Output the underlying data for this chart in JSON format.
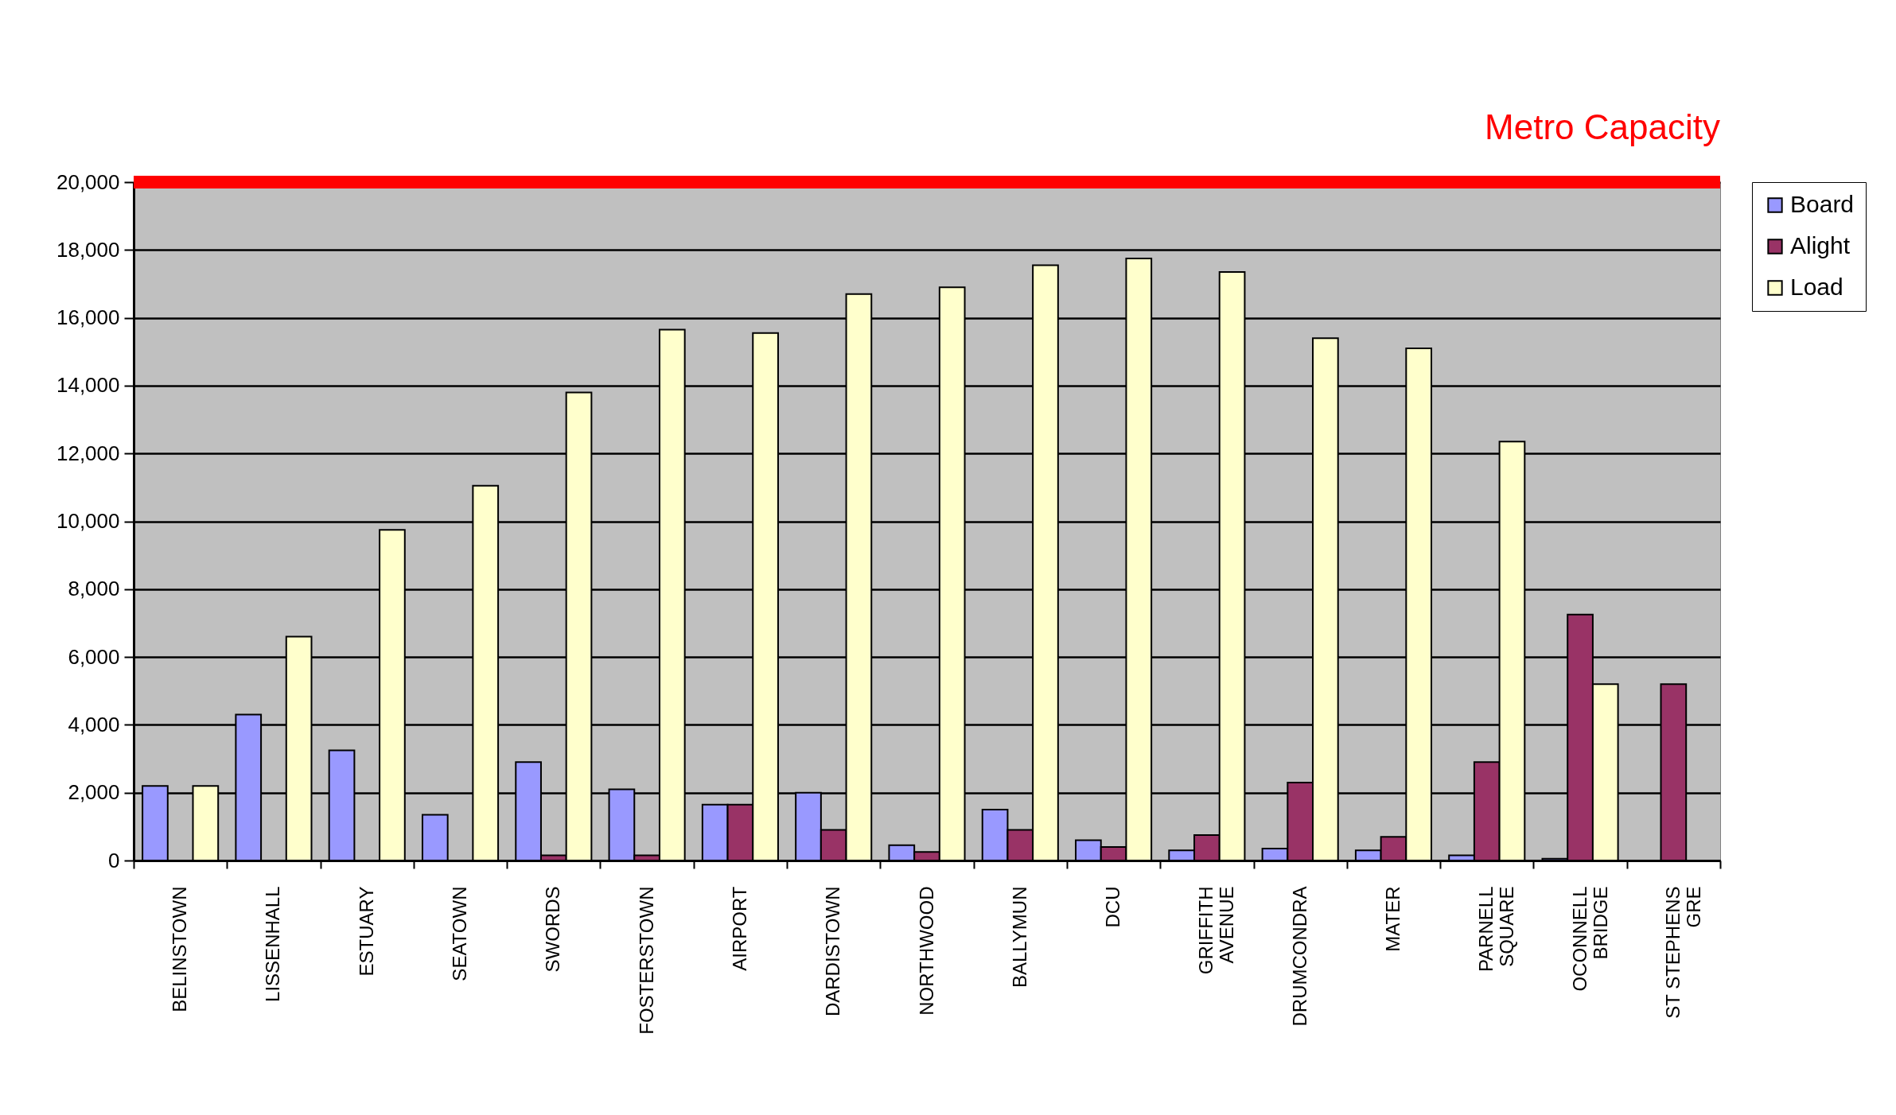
{
  "chart_data": {
    "type": "bar",
    "categories": [
      "BELINSTOWN",
      "LISSENHALL",
      "ESTUARY",
      "SEATOWN",
      "SWORDS",
      "FOSTERSTOWN",
      "AIRPORT",
      "DARDISTOWN",
      "NORTHWOOD",
      "BALLYMUN",
      "DCU",
      "GRIFFITH AVENUE",
      "DRUMCONDRA",
      "MATER",
      "PARNELL SQUARE",
      "OCONNELL BRIDGE",
      "ST STEPHENS GRE"
    ],
    "series": [
      {
        "name": "Board",
        "color": "#9999ff",
        "values": [
          2200,
          4300,
          3250,
          1350,
          2900,
          2100,
          1650,
          2000,
          450,
          1500,
          600,
          300,
          350,
          300,
          150,
          50,
          null
        ]
      },
      {
        "name": "Alight",
        "color": "#993366",
        "values": [
          null,
          null,
          null,
          null,
          150,
          150,
          1650,
          900,
          250,
          900,
          400,
          750,
          2300,
          700,
          2900,
          7250,
          5200
        ]
      },
      {
        "name": "Load",
        "color": "#ffffcc",
        "values": [
          2200,
          6600,
          9750,
          11050,
          13800,
          15650,
          15550,
          16700,
          16900,
          17550,
          17750,
          17350,
          15400,
          15100,
          12350,
          5200,
          null
        ]
      }
    ],
    "ylim": [
      0,
      20000
    ],
    "yticks": [
      0,
      {
        "value": 2000,
        "label": "2,000"
      },
      {
        "value": 4000,
        "label": "4,000"
      },
      {
        "value": 6000,
        "label": "6,000"
      },
      {
        "value": 8000,
        "label": "8,000"
      },
      {
        "value": 10000,
        "label": "10,000"
      },
      {
        "value": 12000,
        "label": "12,000"
      },
      {
        "value": 14000,
        "label": "14,000"
      },
      {
        "value": 16000,
        "label": "16,000"
      },
      {
        "value": 18000,
        "label": "18,000"
      },
      {
        "value": 20000,
        "label": "20,000"
      }
    ],
    "grid": "y",
    "legend": "right",
    "ref_lines": [
      {
        "axis": "y",
        "value": 20000,
        "label": "Metro Capacity",
        "color": "#ff0000"
      }
    ]
  }
}
